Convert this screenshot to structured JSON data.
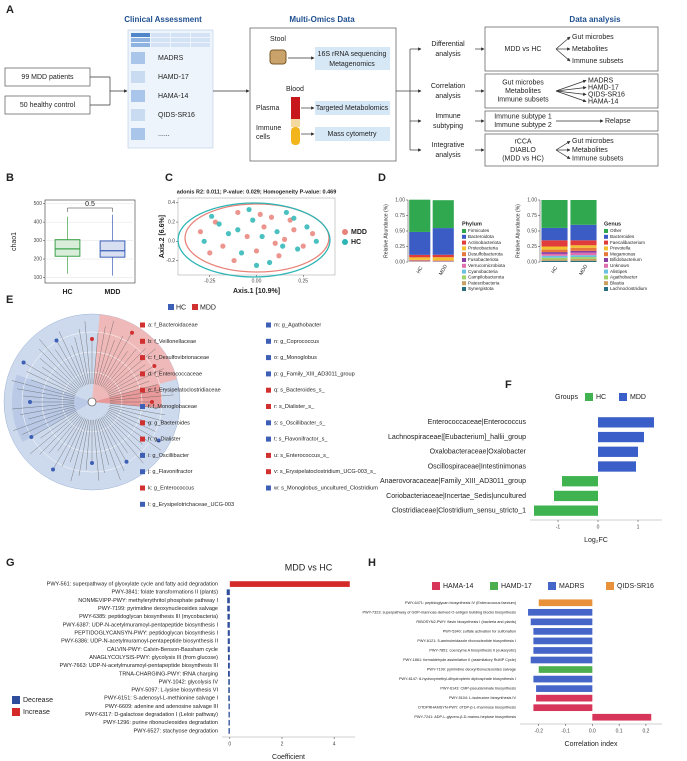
{
  "panel_a": {
    "label": "A",
    "headings": [
      "Clinical Assessment",
      "Multi-Omics Data",
      "Data analysis"
    ],
    "cohorts": [
      "99 MDD patients",
      "50 healthy control"
    ],
    "scales": [
      "MADRS",
      "HAMD-17",
      "HAMA-14",
      "QIDS-SR16",
      "......"
    ],
    "omics": {
      "stool": "Stool",
      "stool_methods": [
        "16S rRNA sequencing",
        "Metagenomics"
      ],
      "blood": "Blood",
      "plasma": "Plasma",
      "plasma_method": "Targeted Metabolomics",
      "immune": [
        "Immune",
        "cells"
      ],
      "immune_method": "Mass cytometry"
    },
    "analyses": [
      [
        "Differential",
        "analysis"
      ],
      [
        "Correlation",
        "analysis"
      ],
      [
        "Immune",
        "subtyping"
      ],
      [
        "Integrative",
        "analysis"
      ]
    ],
    "results": [
      {
        "inputs": [
          "MDD vs HC"
        ],
        "outputs": [
          "Gut microbes",
          "Metabolites",
          "Immune subsets"
        ]
      },
      {
        "inputs": [
          "Gut microbes",
          "Metabolites",
          "Immune subsets"
        ],
        "outputs": [
          "MADRS",
          "HAMD-17",
          "QIDS-SR16",
          "HAMA-14"
        ]
      },
      {
        "inputs": [
          "Immune subtype 1",
          "Immune subtype 2"
        ],
        "outputs": [
          "Relapse"
        ]
      },
      {
        "inputs": [
          "rCCA",
          "DIABLO",
          "(MDD vs HC)"
        ],
        "outputs": [
          "Gut microbes",
          "Metabolites",
          "Immune subsets"
        ]
      }
    ]
  },
  "panel_e": {
    "label": "E",
    "legend": [
      {
        "name": "HC",
        "color": "#3d5fb5"
      },
      {
        "name": "MDD",
        "color": "#d13030"
      }
    ],
    "taxa": [
      {
        "name": "a: f_Bacteroidaceae",
        "color": "#d13030"
      },
      {
        "name": "b: f_Veillonellaceae",
        "color": "#d13030"
      },
      {
        "name": "c: f_Desulfovibrionaceae",
        "color": "#d13030"
      },
      {
        "name": "d: f_Enterococcaceae",
        "color": "#d13030"
      },
      {
        "name": "e: f_Erysipelatoclostridiaceae",
        "color": "#d13030"
      },
      {
        "name": "f: f_Monoglobaceae",
        "color": "#3d5fb5"
      },
      {
        "name": "g: g_Bacteroides",
        "color": "#d13030"
      },
      {
        "name": "h: g_Dialister",
        "color": "#d13030"
      },
      {
        "name": "i: g_Oscillibacter",
        "color": "#3d5fb5"
      },
      {
        "name": "j: g_Flavonifractor",
        "color": "#3d5fb5"
      },
      {
        "name": "k: g_Enterococcus",
        "color": "#d13030"
      },
      {
        "name": "l: g_Erysipelotrichaceae_UCG-003",
        "color": "#3d5fb5"
      },
      {
        "name": "m: g_Agathobacter",
        "color": "#3d5fb5"
      },
      {
        "name": "n: g_Coprococcus",
        "color": "#3d5fb5"
      },
      {
        "name": "o: g_Monoglobus",
        "color": "#3d5fb5"
      },
      {
        "name": "p: g_Family_XIII_AD3011_group",
        "color": "#3d5fb5"
      },
      {
        "name": "q: s_Bacteroides_s_",
        "color": "#d13030"
      },
      {
        "name": "r: s_Dialister_s_",
        "color": "#d13030"
      },
      {
        "name": "s: s_Oscillibacter_s_",
        "color": "#3d5fb5"
      },
      {
        "name": "t: s_Flavonifractor_s_",
        "color": "#3d5fb5"
      },
      {
        "name": "u: s_Enterococcus_s_",
        "color": "#d13030"
      },
      {
        "name": "v: s_Erysipelatoclostridium_UCG-003_s_",
        "color": "#d13030"
      },
      {
        "name": "w: s_Monoglobus_uncultured_Clostridium",
        "color": "#3d5fb5"
      }
    ]
  },
  "chart_data": [
    {
      "panel": "B",
      "type": "box",
      "ylabel": "chao1",
      "categories": [
        "HC",
        "MDD"
      ],
      "colors": [
        "#3fa34d",
        "#3b5fb8"
      ],
      "whisker_low": [
        120,
        110
      ],
      "q1": [
        215,
        210
      ],
      "median": [
        255,
        245
      ],
      "q3": [
        305,
        298
      ],
      "whisker_high": [
        430,
        440
      ],
      "annotation": "0.5",
      "ylim": [
        70,
        520
      ],
      "yticks": [
        100,
        200,
        300,
        400,
        500
      ],
      "grid": true
    },
    {
      "panel": "C",
      "type": "scatter",
      "title": "adonis R2: 0.011; P-value: 0.029; Homogeneity P-value: 0.469",
      "xlabel": "Axis.1 [10.9%]",
      "ylabel": "Axis.2 [6.6%]",
      "series": [
        {
          "name": "MDD",
          "color": "#e8837a",
          "x": [
            -0.3,
            -0.22,
            -0.18,
            -0.1,
            -0.05,
            0.0,
            0.04,
            0.08,
            0.12,
            0.15,
            0.2,
            0.25,
            0.3,
            -0.12,
            0.02,
            0.1,
            -0.25,
            0.18
          ],
          "y": [
            0.1,
            0.2,
            -0.05,
            0.3,
            0.05,
            -0.1,
            0.15,
            0.25,
            -0.15,
            0.02,
            0.12,
            -0.05,
            0.08,
            -0.2,
            0.28,
            -0.02,
            -0.12,
            0.22
          ]
        },
        {
          "name": "HC",
          "color": "#2cb5b5",
          "x": [
            -0.28,
            -0.2,
            -0.15,
            -0.08,
            -0.02,
            0.03,
            0.07,
            0.11,
            0.16,
            0.22,
            0.27,
            -0.1,
            0.0,
            0.14,
            -0.24,
            0.2,
            0.32,
            -0.04
          ],
          "y": [
            0.0,
            0.18,
            0.08,
            -0.12,
            0.22,
            0.05,
            -0.22,
            0.1,
            0.3,
            -0.08,
            0.15,
            0.12,
            -0.25,
            -0.05,
            0.26,
            0.24,
            0.0,
            0.33
          ]
        }
      ],
      "xlim": [
        -0.42,
        0.42
      ],
      "ylim": [
        -0.35,
        0.45
      ],
      "xticks": [
        -0.25,
        {
          "value": 0,
          "label": "0.00"
        },
        0.25
      ],
      "yticks": [
        -0.2,
        {
          "value": 0,
          "label": "0.0"
        },
        0.2,
        0.4
      ]
    },
    {
      "panel": "D",
      "type": "stacked_bar",
      "ylabel": "Relative Abundance (%)",
      "legend_title": "Phylum",
      "categories": [
        "HC",
        "MDD"
      ],
      "series": [
        {
          "name": "Firmicutes",
          "color": "#2fa84f",
          "values": [
            0.52,
            0.45
          ]
        },
        {
          "name": "Bacteroidota",
          "color": "#3b5cc4",
          "values": [
            0.37,
            0.43
          ]
        },
        {
          "name": "Actinobacteriota",
          "color": "#e23b3b",
          "values": [
            0.04,
            0.04
          ]
        },
        {
          "name": "Proteobacteria",
          "color": "#f2c12e",
          "values": [
            0.04,
            0.05
          ]
        },
        {
          "name": "Desulfobacterota",
          "color": "#e8773a",
          "values": [
            0.01,
            0.01
          ]
        },
        {
          "name": "Fusobacteriota",
          "color": "#8a3fa0",
          "values": [
            0.005,
            0.005
          ]
        },
        {
          "name": "Verrucomicrobiota",
          "color": "#e06fb0",
          "values": [
            0.01,
            0.005
          ]
        },
        {
          "name": "Cyanobacteria",
          "color": "#6ac1e0",
          "values": [
            0.003,
            0.002
          ]
        },
        {
          "name": "Campilobacterota",
          "color": "#9fd36a",
          "values": [
            0.003,
            0.002
          ]
        },
        {
          "name": "Patescibacteria",
          "color": "#c8a060",
          "values": [
            0.002,
            0.002
          ]
        },
        {
          "name": "Synergistota",
          "color": "#2a6f7f",
          "values": [
            0.002,
            0.001
          ]
        }
      ],
      "ylim": [
        0,
        1
      ],
      "yticks": [
        {
          "value": 0,
          "label": "0.00"
        },
        0.25,
        {
          "value": 0.5,
          "label": "0.50"
        },
        0.75,
        {
          "value": 1,
          "label": "1.00"
        }
      ]
    },
    {
      "type": "stacked_bar",
      "ylabel": "Relative Abundance (%)",
      "legend_title": "Genus",
      "categories": [
        "HC",
        "MDD"
      ],
      "series": [
        {
          "name": "Other",
          "color": "#2fa84f",
          "values": [
            0.45,
            0.4
          ]
        },
        {
          "name": "Bacteroides",
          "color": "#3b5cc4",
          "values": [
            0.2,
            0.25
          ]
        },
        {
          "name": "Faecalibacterium",
          "color": "#e23b3b",
          "values": [
            0.1,
            0.08
          ]
        },
        {
          "name": "Prevotella",
          "color": "#f2c12e",
          "values": [
            0.05,
            0.04
          ]
        },
        {
          "name": "Megamonas",
          "color": "#e8773a",
          "values": [
            0.04,
            0.05
          ]
        },
        {
          "name": "Bifidobacterium",
          "color": "#8a3fa0",
          "values": [
            0.03,
            0.03
          ]
        },
        {
          "name": "Unknown",
          "color": "#e06fb0",
          "values": [
            0.03,
            0.04
          ]
        },
        {
          "name": "Alistipes",
          "color": "#6ac1e0",
          "values": [
            0.03,
            0.03
          ]
        },
        {
          "name": "Agathobacter",
          "color": "#9fd36a",
          "values": [
            0.03,
            0.03
          ]
        },
        {
          "name": "Blautia",
          "color": "#c8a060",
          "values": [
            0.02,
            0.03
          ]
        },
        {
          "name": "Lachnoclostridium",
          "color": "#2a6f7f",
          "values": [
            0.02,
            0.02
          ]
        }
      ],
      "ylim": [
        0,
        1
      ],
      "yticks": [
        {
          "value": 0,
          "label": "0.00"
        },
        0.25,
        {
          "value": 0.5,
          "label": "0.50"
        },
        0.75,
        {
          "value": 1,
          "label": "1.00"
        }
      ]
    },
    {
      "panel": "F",
      "type": "hbar",
      "xlabel": "Log₂FC",
      "legend_title": "Groups",
      "categories": [
        "Enterococcaceae|Enterococcus",
        "Lachnospiraceae|[Eubacterium]_hallii_group",
        "Oxalobacteraceae|Oxalobacter",
        "Oscillospiraceae|Intestinimonas",
        "Anaerovoracaceae|Family_XIII_AD3011_group",
        "Coriobacteriaceae|Incertae_Sedis|uncultured",
        "Clostridiaceae|Clostridium_sensu_stricto_1"
      ],
      "series": [
        {
          "name": "HC",
          "color": "#3fb34f",
          "values": [
            null,
            null,
            null,
            null,
            -0.9,
            -1.1,
            -1.6
          ]
        },
        {
          "name": "MDD",
          "color": "#3b5fc8",
          "values": [
            1.4,
            1.15,
            1.0,
            0.95,
            null,
            null,
            null
          ]
        }
      ],
      "xlim": [
        -1.7,
        1.6
      ],
      "xticks": [
        -1,
        0,
        1
      ]
    },
    {
      "panel": "G",
      "type": "hbar",
      "title": "MDD vs HC",
      "xlabel": "Coefficient",
      "categories": [
        "PWY-561: superpathway of glyoxylate cycle and fatty acid degradation",
        "PWY-3841: folate transformations II (plants)",
        "NONMEVIPP-PWY: methylerythritol phosphate pathway I",
        "PWY-7199: pyrimidine deoxynucleosides salvage",
        "PWY-6385: peptidoglycan biosynthesis III (mycobacteria)",
        "PWY-6387: UDP-N-acetylmuramoyl-pentapeptide biosynthesis I",
        "PEPTIDOGLYCANSYN-PWY: peptidoglycan biosynthesis I",
        "PWY-6386: UDP-N-acetylmuramoyl-pentapeptide biosynthesis II",
        "CALVIN-PWY: Calvin-Benson-Bassham cycle",
        "ANAGLYCOLYSIS-PWY: glycolysis III (from glucose)",
        "PWY-7663: UDP-N-acetylmuramoyl-pentapeptide biosynthesis III",
        "TRNA-CHARGING-PWY: tRNA charging",
        "PWY-1042: glycolysis IV",
        "PWY-5097: L-lysine biosynthesis VI",
        "PWY-6151: S-adenosyl-L-methionine salvage I",
        "PWY-6609: adenine and adenosine salvage III",
        "PWY-6317: D-galactose degradation I (Leloir pathway)",
        "PWY-1296: purine ribonucleosides degradation",
        "PWY-6527: stachyose degradation"
      ],
      "series": [
        {
          "name": "Decrease",
          "color": "#2f4d9a",
          "values": [
            null,
            -0.12,
            -0.1,
            -0.1,
            -0.09,
            -0.09,
            -0.08,
            -0.08,
            -0.08,
            -0.07,
            -0.07,
            -0.07,
            -0.06,
            -0.06,
            -0.06,
            -0.05,
            -0.05,
            -0.05,
            -0.05
          ]
        },
        {
          "name": "Increase",
          "color": "#d42a2a",
          "values": [
            4.6,
            null,
            null,
            null,
            null,
            null,
            null,
            null,
            null,
            null,
            null,
            null,
            null,
            null,
            null,
            null,
            null,
            null,
            null
          ]
        }
      ],
      "xlim": [
        -0.3,
        4.8
      ],
      "xticks": [
        0,
        2,
        4
      ]
    },
    {
      "panel": "H",
      "type": "hbar",
      "xlabel": "Correlation index",
      "categories": [
        "PWY-6471: peptidoglycan biosynthesis IV (Enterococcus faecium)",
        "PWY-7323: superpathway of GDP-mannose-derived O-antigen building blocks biosynthesis",
        "RIBOSYN2-PWY: flavin biosynthesis I (bacteria and plants)",
        "PWY-5340: sulfate activation for sulfonation",
        "PWY-6121: 5-aminoimidazole ribonucleotide biosynthesis I",
        "PWY-7851: coenzyme A biosynthesis II (eukaryotic)",
        "PWY-1861: formaldehyde assimilation II (assimilatory RuMP Cycle)",
        "PWY-7199: pyrimidine deoxyribonucleosides salvage",
        "PWY-6147: 6-hydroxymethyl-dihydropterin diphosphate biosynthesis I",
        "PWY-6143: CMP-pseudaminate biosynthesis",
        "PWY-5104: L-isoleucine biosynthesis IV",
        "DTDPRHAMSYN-PWY: dTDP-β-L-rhamnose biosynthesis",
        "PWY-7241: ADP-L-glycero-β-D-manno-heptose biosynthesis"
      ],
      "series": [
        {
          "name": "HAMA-14",
          "color": "#d8355a",
          "values": [
            null,
            null,
            null,
            null,
            null,
            null,
            null,
            null,
            null,
            null,
            -0.21,
            -0.22,
            0.22
          ]
        },
        {
          "name": "HAMD-17",
          "color": "#4cae4c",
          "values": [
            null,
            null,
            null,
            null,
            null,
            null,
            null,
            -0.2,
            null,
            null,
            null,
            null,
            null
          ]
        },
        {
          "name": "MADRS",
          "color": "#4566c8",
          "values": [
            null,
            -0.24,
            -0.23,
            -0.22,
            -0.22,
            -0.22,
            -0.23,
            null,
            -0.22,
            -0.21,
            null,
            null,
            null
          ]
        },
        {
          "name": "QIDS-SR16",
          "color": "#e8913a",
          "values": [
            -0.2,
            null,
            null,
            null,
            null,
            null,
            null,
            null,
            null,
            null,
            null,
            null,
            null
          ]
        }
      ],
      "xlim": [
        -0.27,
        0.26
      ],
      "xticks": [
        -0.2,
        -0.1,
        {
          "value": 0,
          "label": "0.0"
        },
        0.1,
        0.2
      ]
    }
  ]
}
